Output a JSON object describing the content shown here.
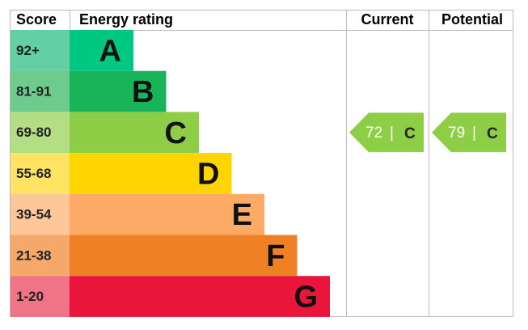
{
  "header": {
    "score": "Score",
    "rating": "Energy rating",
    "current": "Current",
    "potential": "Potential"
  },
  "bands": [
    {
      "score": "92+",
      "letter": "A",
      "color": "#00c781",
      "score_color": "#62d0a3"
    },
    {
      "score": "81-91",
      "letter": "B",
      "color": "#19b459",
      "score_color": "#6ecb8e"
    },
    {
      "score": "69-80",
      "letter": "C",
      "color": "#8dce46",
      "score_color": "#b4de85"
    },
    {
      "score": "55-68",
      "letter": "D",
      "color": "#ffd500",
      "score_color": "#ffe464"
    },
    {
      "score": "39-54",
      "letter": "E",
      "color": "#fcaa65",
      "score_color": "#fdc79a"
    },
    {
      "score": "21-38",
      "letter": "F",
      "color": "#ef8023",
      "score_color": "#f4a86a"
    },
    {
      "score": "1-20",
      "letter": "G",
      "color": "#e9153b",
      "score_color": "#f07386"
    }
  ],
  "current": {
    "value": 72,
    "separator": "|",
    "rating": "C"
  },
  "potential": {
    "value": 79,
    "separator": "|",
    "rating": "C"
  }
}
